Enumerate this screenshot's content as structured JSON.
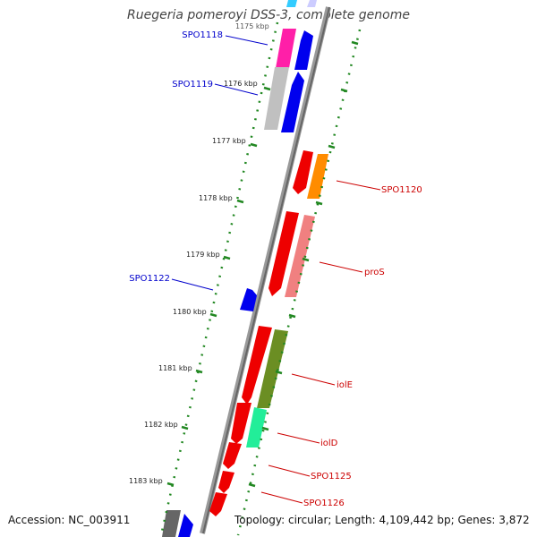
{
  "title": "Ruegeria pomeroyi DSS-3, complete genome",
  "footer": {
    "accession": "Accession: NC_003911",
    "topology": "Topology: circular; Length: 4,109,442 bp; Genes: 3,872"
  },
  "ruler": {
    "partial_top_label": "1175 kbp",
    "labels": [
      "1176 kbp",
      "1177 kbp",
      "1178 kbp",
      "1179 kbp",
      "1180 kbp",
      "1181 kbp",
      "1182 kbp",
      "1183 kbp"
    ]
  },
  "genes": [
    {
      "id": "g1",
      "label": "SPO1118",
      "strand": "forward",
      "color": "#0000ee"
    },
    {
      "id": "g2",
      "label": "SPO1119",
      "strand": "forward",
      "color": "#0000ee"
    },
    {
      "id": "g3",
      "label": "SPO1120",
      "strand": "reverse",
      "color": "#ee0000"
    },
    {
      "id": "g4",
      "label": "proS",
      "strand": "reverse",
      "color": "#ee0000"
    },
    {
      "id": "g5",
      "label": "SPO1122",
      "strand": "forward",
      "color": "#0000ee"
    },
    {
      "id": "g6",
      "label": "iolE",
      "strand": "reverse",
      "color": "#ee0000"
    },
    {
      "id": "g7",
      "label": "iolD",
      "strand": "reverse",
      "color": "#ee0000"
    },
    {
      "id": "g8",
      "label": "SPO1125",
      "strand": "reverse",
      "color": "#ee0000"
    },
    {
      "id": "g9",
      "label": "SPO1126",
      "strand": "reverse",
      "color": "#ee0000"
    }
  ],
  "colors": {
    "forward_label": "#0000cc",
    "reverse_label": "#cc0000",
    "backbone": "#888888",
    "ruler_ticks": "#228822",
    "outer_ticks": "#228822",
    "cog_magenta": "#ff1fa8",
    "cog_grey": "#c0c0c0",
    "cog_orange": "#ff8c00",
    "cog_pink": "#f08080",
    "cog_olive": "#6b8e23",
    "cog_green": "#22ee99",
    "cog_cyan": "#33ccff",
    "cog_lavender": "#ccccff",
    "cog_darkgrey": "#666666"
  }
}
